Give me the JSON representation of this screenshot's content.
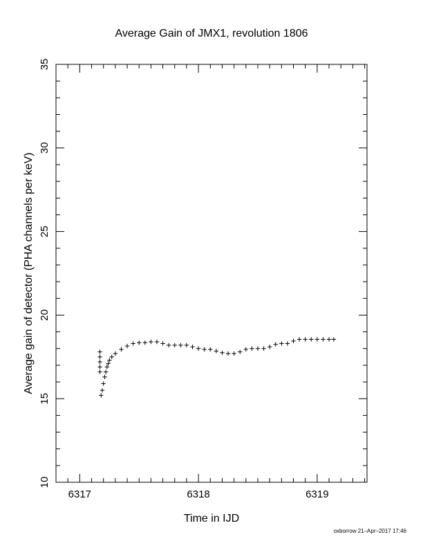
{
  "footer": "oxborrow 21–Apr–2017 17:46",
  "chart_data": {
    "type": "scatter",
    "title": "Average Gain of JMX1, revolution 1806",
    "xlabel": "Time in IJD",
    "ylabel": "Average gain of detector (PHA channels per keV)",
    "xlim": [
      6316.8,
      6319.42
    ],
    "ylim": [
      10,
      35
    ],
    "xticks": [
      6317,
      6318,
      6319
    ],
    "xtick_labels": [
      "6317",
      "6318",
      "6319"
    ],
    "yticks": [
      10,
      15,
      20,
      25,
      30,
      35
    ],
    "ytick_labels": [
      "10",
      "15",
      "20",
      "25",
      "30",
      "35"
    ],
    "marker": "+",
    "grid": false,
    "series": [
      {
        "x": [
          6317.17,
          6317.17,
          6317.17,
          6317.17,
          6317.17,
          6317.18,
          6317.19,
          6317.2,
          6317.21,
          6317.22,
          6317.23,
          6317.24,
          6317.25,
          6317.27,
          6317.3,
          6317.35,
          6317.4,
          6317.45,
          6317.5,
          6317.55,
          6317.6,
          6317.65,
          6317.7,
          6317.75,
          6317.8,
          6317.85,
          6317.9,
          6317.95,
          6318.0,
          6318.05,
          6318.1,
          6318.15,
          6318.2,
          6318.25,
          6318.3,
          6318.35,
          6318.4,
          6318.45,
          6318.5,
          6318.55,
          6318.6,
          6318.65,
          6318.7,
          6318.75,
          6318.8,
          6318.85,
          6318.9,
          6318.95,
          6319.0,
          6319.05,
          6319.1,
          6319.14
        ],
        "y": [
          17.8,
          17.5,
          17.2,
          16.9,
          16.6,
          15.2,
          15.5,
          15.9,
          16.3,
          16.6,
          16.9,
          17.1,
          17.3,
          17.5,
          17.7,
          17.95,
          18.15,
          18.3,
          18.35,
          18.35,
          18.4,
          18.4,
          18.3,
          18.2,
          18.2,
          18.2,
          18.2,
          18.1,
          18.0,
          17.95,
          17.95,
          17.85,
          17.75,
          17.7,
          17.7,
          17.8,
          17.95,
          18.0,
          18.0,
          18.0,
          18.1,
          18.25,
          18.3,
          18.3,
          18.45,
          18.55,
          18.55,
          18.55,
          18.55,
          18.55,
          18.55,
          18.55
        ]
      }
    ]
  }
}
